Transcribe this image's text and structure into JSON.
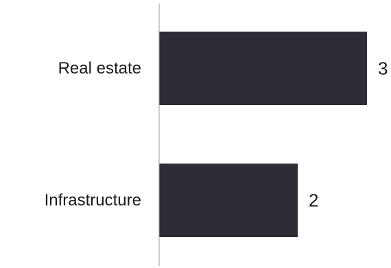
{
  "chart_data": {
    "type": "bar",
    "orientation": "horizontal",
    "categories": [
      "Real estate",
      "Infrastructure"
    ],
    "values": [
      3,
      2
    ],
    "title": "",
    "xlabel": "",
    "ylabel": "",
    "xlim": [
      0,
      3
    ],
    "grid": false,
    "legend": "none",
    "colors": {
      "bar": "#2e2d36",
      "axis": "#9a9a9a",
      "text": "#1a1a1a"
    }
  }
}
